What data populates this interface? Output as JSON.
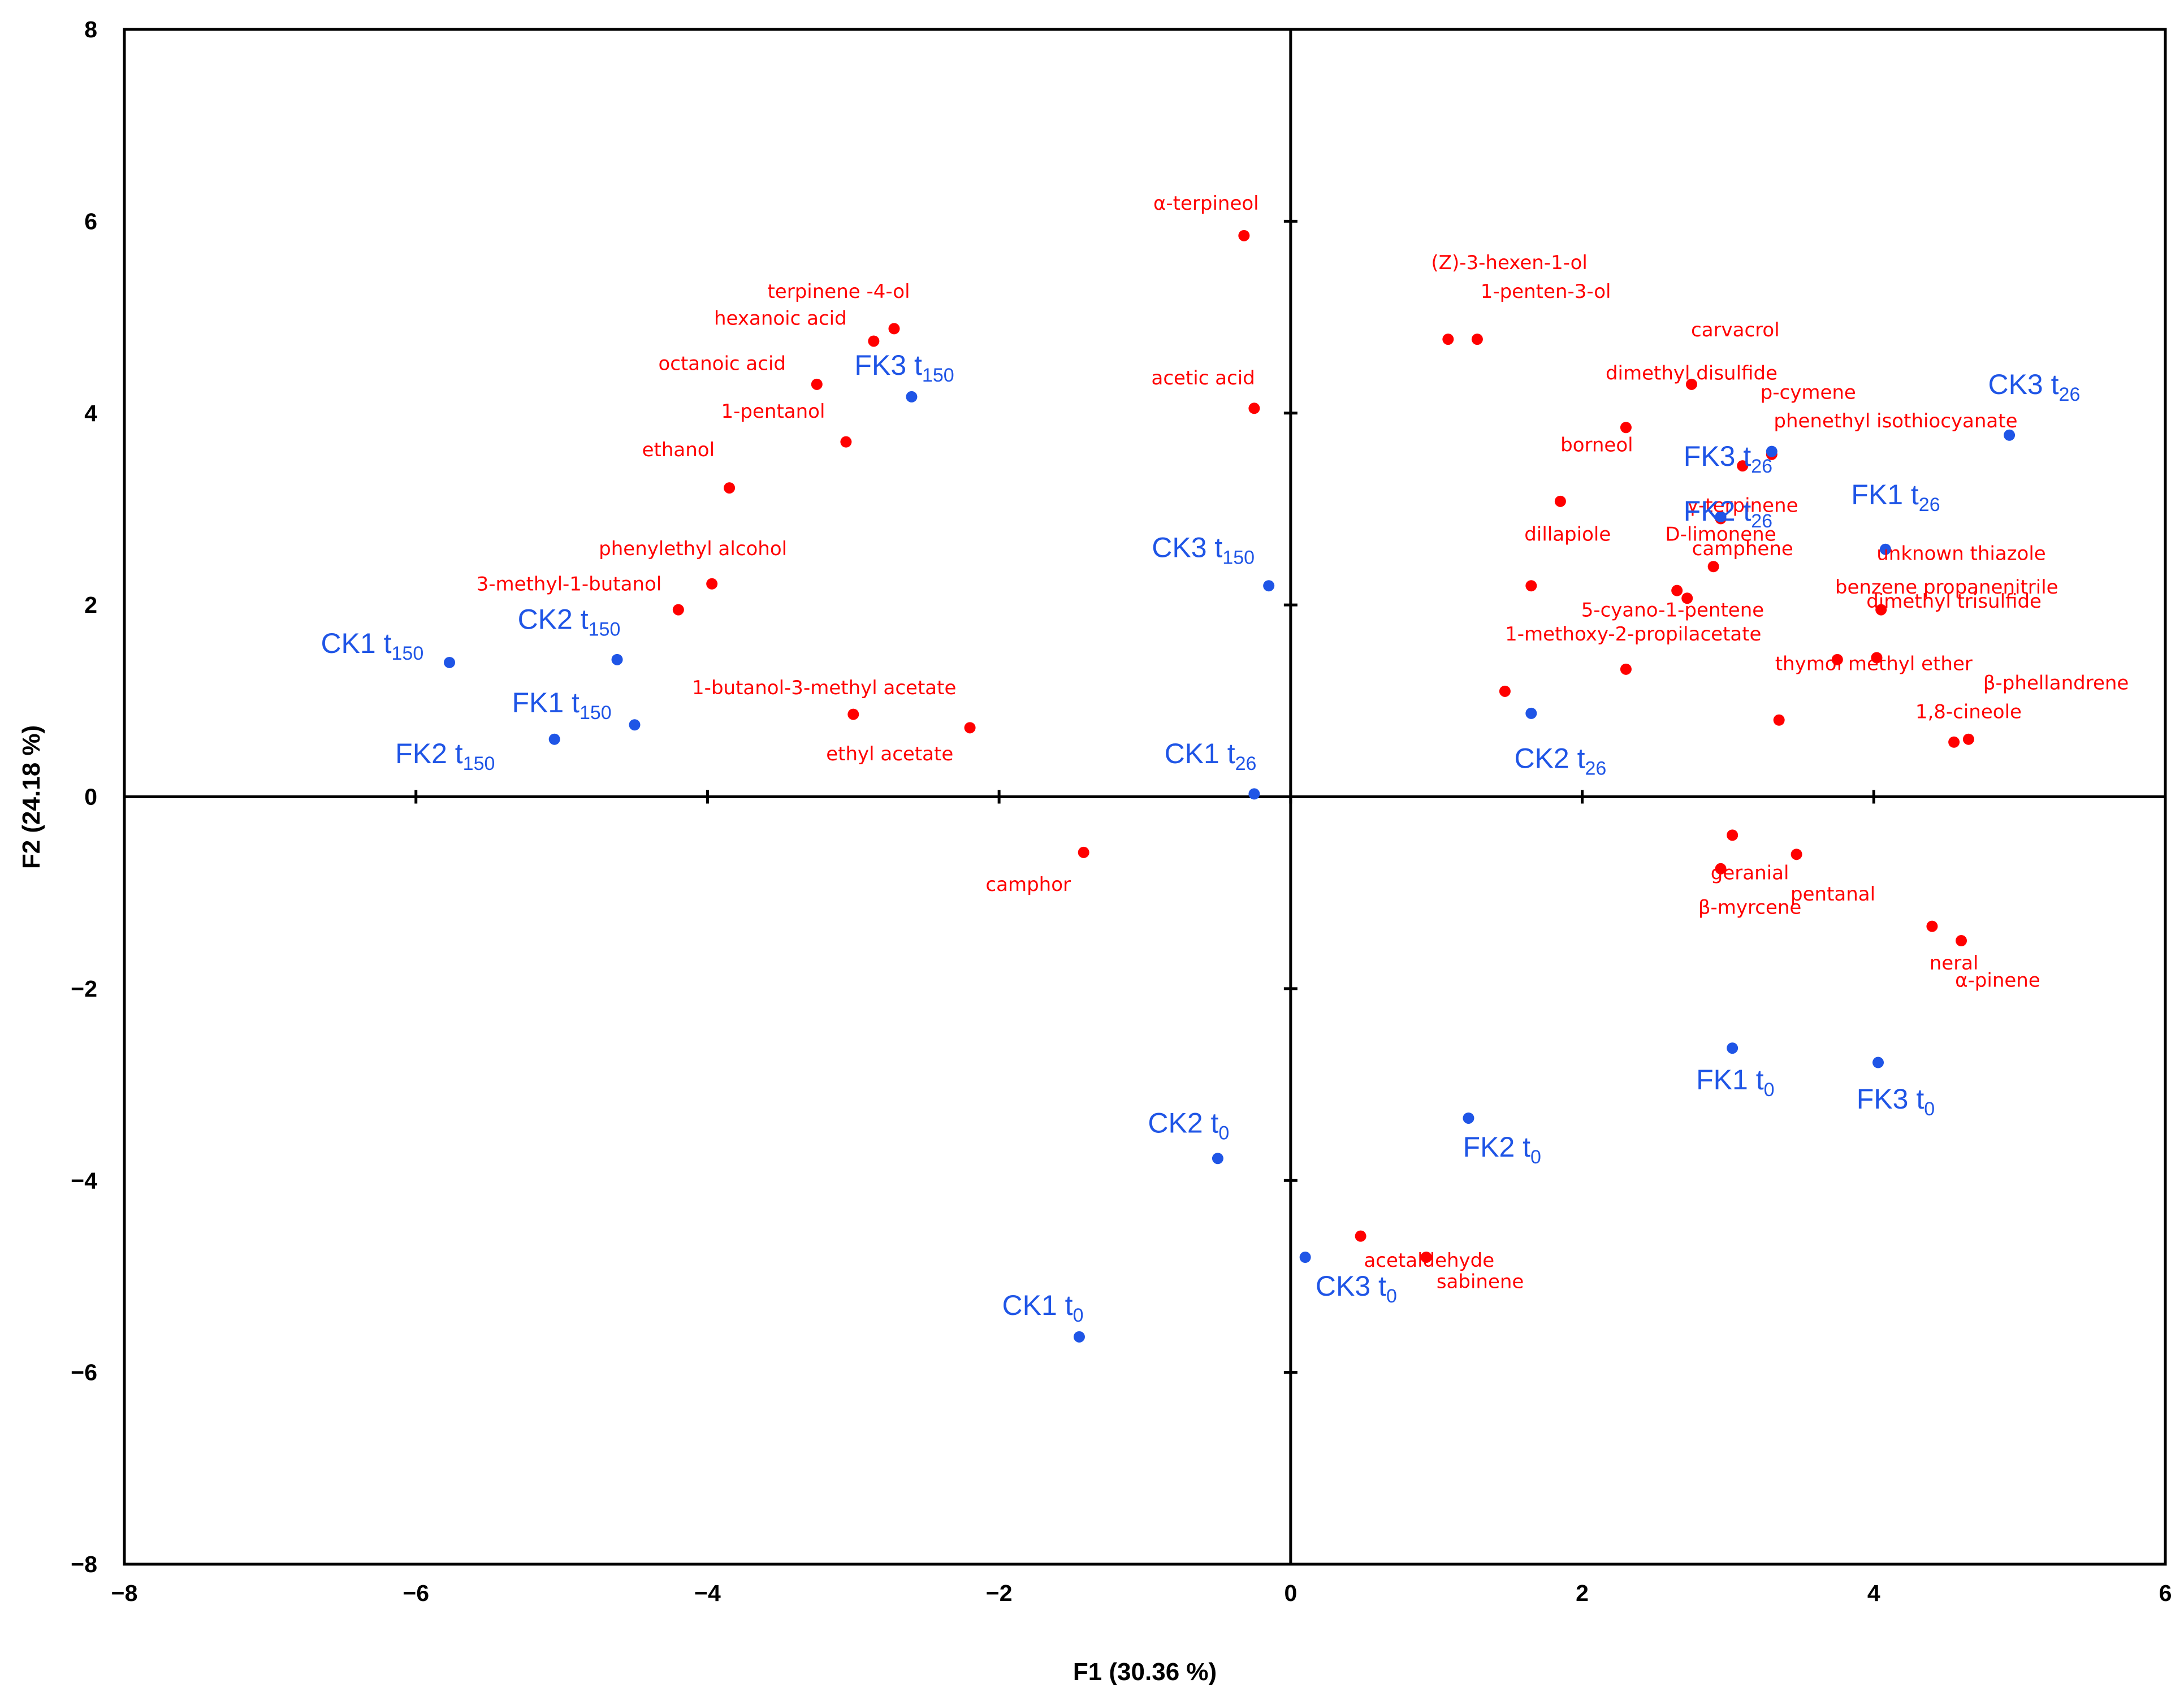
{
  "chart_data": {
    "type": "scatter",
    "title": "",
    "xlabel": "F1 (30.36 %)",
    "ylabel": "F2 (24.18 %)",
    "xlim": [
      -8,
      6
    ],
    "ylim": [
      -8,
      8
    ],
    "xticks": [
      -8,
      -6,
      -4,
      -2,
      0,
      2,
      4,
      6
    ],
    "yticks": [
      -8,
      -6,
      -4,
      -2,
      0,
      2,
      4,
      6,
      8
    ],
    "xtick_labels": [
      "−8",
      "−6",
      "−4",
      "−2",
      "0",
      "2",
      "4",
      "6"
    ],
    "ytick_labels": [
      "−8",
      "−6",
      "−4",
      "−2",
      "0",
      "2",
      "4",
      "6",
      "8"
    ],
    "grid": false,
    "colors": {
      "variables": "#ff0000",
      "observations": "#1f55e6",
      "axes": "#000000"
    },
    "series": [
      {
        "name": "variables",
        "points": [
          {
            "label": "α-terpineol",
            "x": -0.32,
            "y": 5.85,
            "lx": -0.58,
            "ly": 6.12
          },
          {
            "label": "terpinene -4-ol",
            "x": -2.72,
            "y": 4.88,
            "lx": -3.1,
            "ly": 5.2
          },
          {
            "label": "hexanoic acid",
            "x": -2.86,
            "y": 4.75,
            "lx": -3.5,
            "ly": 4.92
          },
          {
            "label": "octanoic acid",
            "x": -3.25,
            "y": 4.3,
            "lx": -3.9,
            "ly": 4.45
          },
          {
            "label": "1-pentanol",
            "x": -3.05,
            "y": 3.7,
            "lx": -3.55,
            "ly": 3.95
          },
          {
            "label": "ethanol",
            "x": -3.85,
            "y": 3.22,
            "lx": -4.2,
            "ly": 3.55
          },
          {
            "label": "phenylethyl alcohol",
            "x": -3.97,
            "y": 2.22,
            "lx": -4.1,
            "ly": 2.52
          },
          {
            "label": "3-methyl-1-butanol",
            "x": -4.2,
            "y": 1.95,
            "lx": -4.95,
            "ly": 2.15
          },
          {
            "label": "1-butanol-3-methyl acetate",
            "x": -3.0,
            "y": 0.86,
            "lx": -3.2,
            "ly": 1.07
          },
          {
            "label": "ethyl acetate",
            "x": -2.2,
            "y": 0.72,
            "lx": -2.75,
            "ly": 0.38
          },
          {
            "label": "acetic acid",
            "x": -0.25,
            "y": 4.05,
            "lx": -0.6,
            "ly": 4.3
          },
          {
            "label": "camphor",
            "x": -1.42,
            "y": -0.58,
            "lx": -1.8,
            "ly": -0.98
          },
          {
            "label": "(Z)-3-hexen-1-ol",
            "x": 1.08,
            "y": 4.77,
            "lx": 1.5,
            "ly": 5.5
          },
          {
            "label": "1-penten-3-ol",
            "x": 1.28,
            "y": 4.77,
            "lx": 1.75,
            "ly": 5.2
          },
          {
            "label": "carvacrol",
            "x": 2.75,
            "y": 4.3,
            "lx": 3.05,
            "ly": 4.8
          },
          {
            "label": "dimethyl disulfide",
            "x": 2.3,
            "y": 3.85,
            "lx": 2.75,
            "ly": 4.35
          },
          {
            "label": "p-cymene",
            "x": 3.3,
            "y": 3.57,
            "lx": 3.55,
            "ly": 4.15
          },
          {
            "label": "phenethyl isothiocyanate",
            "x": 3.1,
            "y": 3.45,
            "lx": 4.15,
            "ly": 3.85
          },
          {
            "label": "borneol",
            "x": 1.85,
            "y": 3.08,
            "lx": 2.1,
            "ly": 3.6
          },
          {
            "label": "γ-terpinene",
            "x": 2.95,
            "y": 2.9,
            "lx": 3.1,
            "ly": 2.97
          },
          {
            "label": "dillapiole",
            "x": 1.65,
            "y": 2.2,
            "lx": 1.9,
            "ly": 2.67
          },
          {
            "label": "D-limonene",
            "x": 2.9,
            "y": 2.4,
            "lx": 2.95,
            "ly": 2.67
          },
          {
            "label": "camphene",
            "x": 2.65,
            "y": 2.15,
            "lx": 3.1,
            "ly": 2.52
          },
          {
            "label": "5-cyano-1-pentene",
            "x": 2.72,
            "y": 2.07,
            "lx": 2.62,
            "ly": 1.88
          },
          {
            "label": "1-methoxy-2-propilacetate",
            "x": 2.3,
            "y": 1.33,
            "lx": 2.35,
            "ly": 1.63
          },
          {
            "label": "unknown thiazole",
            "x": 4.05,
            "y": 1.95,
            "lx": 4.6,
            "ly": 2.47
          },
          {
            "label": "benzene propanenitrile",
            "x": 3.75,
            "y": 1.43,
            "lx": 4.5,
            "ly": 2.12
          },
          {
            "label": "dimethyl trisulfide",
            "x": 4.02,
            "y": 1.45,
            "lx": 4.55,
            "ly": 1.97
          },
          {
            "label": "thymol methyl ether",
            "x": 3.35,
            "y": 0.8,
            "lx": 4.0,
            "ly": 1.32
          },
          {
            "label": "β-phellandrene",
            "x": 4.65,
            "y": 0.6,
            "lx": 5.25,
            "ly": 1.12
          },
          {
            "label": "1,8-cineole",
            "x": 4.55,
            "y": 0.57,
            "lx": 4.65,
            "ly": 0.82
          },
          {
            "label": "",
            "x": 1.47,
            "y": 1.1,
            "lx": 1.47,
            "ly": 1.1
          },
          {
            "label": "geranial",
            "x": 3.03,
            "y": -0.4,
            "lx": 3.15,
            "ly": -0.86
          },
          {
            "label": "pentanal",
            "x": 3.47,
            "y": -0.6,
            "lx": 3.72,
            "ly": -1.08
          },
          {
            "label": "β-myrcene",
            "x": 2.95,
            "y": -0.75,
            "lx": 3.15,
            "ly": -1.22
          },
          {
            "label": "neral",
            "x": 4.4,
            "y": -1.35,
            "lx": 4.55,
            "ly": -1.8
          },
          {
            "label": "α-pinene",
            "x": 4.6,
            "y": -1.5,
            "lx": 4.85,
            "ly": -1.98
          },
          {
            "label": "acetaldehyde",
            "x": 0.48,
            "y": -4.58,
            "lx": 0.95,
            "ly": -4.9
          },
          {
            "label": "sabinene",
            "x": 0.93,
            "y": -4.8,
            "lx": 1.3,
            "ly": -5.12
          }
        ]
      },
      {
        "name": "observations",
        "points": [
          {
            "label": "FK3",
            "sub": "150",
            "x": -2.6,
            "y": 4.17,
            "lx": -2.65,
            "ly": 4.4
          },
          {
            "label": "CK1",
            "sub": "150",
            "x": -5.77,
            "y": 1.4,
            "lx": -6.3,
            "ly": 1.5
          },
          {
            "label": "CK2",
            "sub": "150",
            "x": -4.62,
            "y": 1.43,
            "lx": -4.95,
            "ly": 1.75
          },
          {
            "label": "FK1",
            "sub": "150",
            "x": -4.5,
            "y": 0.75,
            "lx": -5.0,
            "ly": 0.88
          },
          {
            "label": "FK2",
            "sub": "150",
            "x": -5.05,
            "y": 0.6,
            "lx": -5.8,
            "ly": 0.35
          },
          {
            "label": "CK3",
            "sub": "150",
            "x": -0.15,
            "y": 2.2,
            "lx": -0.6,
            "ly": 2.5
          },
          {
            "label": "CK1",
            "sub": "26",
            "x": -0.25,
            "y": 0.03,
            "lx": -0.55,
            "ly": 0.35
          },
          {
            "label": "CK3",
            "sub": "26",
            "x": 4.93,
            "y": 3.77,
            "lx": 5.1,
            "ly": 4.2
          },
          {
            "label": "FK3",
            "sub": "26",
            "x": 3.3,
            "y": 3.6,
            "lx": 3.0,
            "ly": 3.45
          },
          {
            "label": "FK1",
            "sub": "26",
            "x": 4.08,
            "y": 2.58,
            "lx": 4.15,
            "ly": 3.05
          },
          {
            "label": "FK2",
            "sub": "26",
            "x": 2.95,
            "y": 2.92,
            "lx": 3.0,
            "ly": 2.88
          },
          {
            "label": "CK2",
            "sub": "26",
            "x": 1.65,
            "y": 0.87,
            "lx": 1.85,
            "ly": 0.3
          },
          {
            "label": "FK1",
            "sub": "0",
            "x": 3.03,
            "y": -2.62,
            "lx": 3.05,
            "ly": -3.05
          },
          {
            "label": "FK3",
            "sub": "0",
            "x": 4.03,
            "y": -2.77,
            "lx": 4.15,
            "ly": -3.25
          },
          {
            "label": "FK2",
            "sub": "0",
            "x": 1.22,
            "y": -3.35,
            "lx": 1.45,
            "ly": -3.75
          },
          {
            "label": "CK2",
            "sub": "0",
            "x": -0.5,
            "y": -3.77,
            "lx": -0.7,
            "ly": -3.5
          },
          {
            "label": "CK3",
            "sub": "0",
            "x": 0.1,
            "y": -4.8,
            "lx": 0.45,
            "ly": -5.2
          },
          {
            "label": "CK1",
            "sub": "0",
            "x": -1.45,
            "y": -5.63,
            "lx": -1.7,
            "ly": -5.4
          }
        ]
      }
    ]
  }
}
